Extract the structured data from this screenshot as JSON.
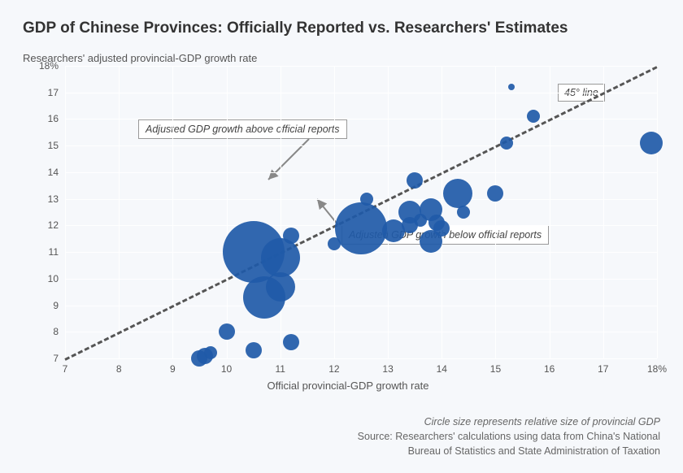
{
  "title": "GDP of Chinese Provinces: Officially Reported vs. Researchers' Estimates",
  "y_axis_title": "Researchers' adjusted provincial-GDP growth rate",
  "x_axis_title": "Official provincial-GDP growth rate",
  "chart": {
    "type": "scatter-bubble",
    "xlim": [
      7,
      18
    ],
    "ylim": [
      7,
      18
    ],
    "x_ticks": [
      7,
      8,
      9,
      10,
      11,
      12,
      13,
      14,
      15,
      16,
      17,
      18
    ],
    "y_ticks": [
      7,
      8,
      9,
      10,
      11,
      12,
      13,
      14,
      15,
      16,
      17,
      18
    ],
    "x_tick_labels": [
      "7",
      "8",
      "9",
      "10",
      "11",
      "12",
      "13",
      "14",
      "15",
      "16",
      "17",
      "18%"
    ],
    "y_tick_labels": [
      "7",
      "8",
      "9",
      "10",
      "11",
      "12",
      "13",
      "14",
      "15",
      "16",
      "17",
      "18%"
    ],
    "background_color": "#f6f8fb",
    "grid_color": "#ffffff",
    "marker_color": "#1f5aa8",
    "line_color": "#555555",
    "line_dash": "6 6",
    "line_width": 3,
    "points": [
      {
        "x": 9.5,
        "y": 7.0,
        "s": 10
      },
      {
        "x": 9.6,
        "y": 7.1,
        "s": 10
      },
      {
        "x": 9.7,
        "y": 7.2,
        "s": 8
      },
      {
        "x": 10.0,
        "y": 8.0,
        "s": 10
      },
      {
        "x": 10.5,
        "y": 7.3,
        "s": 10
      },
      {
        "x": 11.2,
        "y": 7.6,
        "s": 10
      },
      {
        "x": 10.7,
        "y": 9.3,
        "s": 26
      },
      {
        "x": 11.0,
        "y": 9.7,
        "s": 18
      },
      {
        "x": 10.5,
        "y": 11.0,
        "s": 38
      },
      {
        "x": 11.0,
        "y": 10.8,
        "s": 24
      },
      {
        "x": 11.2,
        "y": 11.6,
        "s": 10
      },
      {
        "x": 12.0,
        "y": 11.3,
        "s": 8
      },
      {
        "x": 12.5,
        "y": 11.9,
        "s": 32
      },
      {
        "x": 12.6,
        "y": 13.0,
        "s": 8
      },
      {
        "x": 13.1,
        "y": 11.8,
        "s": 14
      },
      {
        "x": 13.4,
        "y": 12.0,
        "s": 10
      },
      {
        "x": 13.4,
        "y": 12.5,
        "s": 14
      },
      {
        "x": 13.5,
        "y": 13.7,
        "s": 10
      },
      {
        "x": 13.6,
        "y": 12.2,
        "s": 8
      },
      {
        "x": 13.8,
        "y": 11.4,
        "s": 14
      },
      {
        "x": 13.8,
        "y": 12.6,
        "s": 14
      },
      {
        "x": 13.9,
        "y": 12.1,
        "s": 10
      },
      {
        "x": 14.0,
        "y": 11.9,
        "s": 10
      },
      {
        "x": 14.3,
        "y": 13.2,
        "s": 18
      },
      {
        "x": 14.4,
        "y": 12.5,
        "s": 8
      },
      {
        "x": 15.0,
        "y": 13.2,
        "s": 10
      },
      {
        "x": 15.2,
        "y": 15.1,
        "s": 8
      },
      {
        "x": 15.3,
        "y": 17.2,
        "s": 4
      },
      {
        "x": 15.7,
        "y": 16.1,
        "s": 8
      },
      {
        "x": 17.9,
        "y": 15.1,
        "s": 14
      }
    ],
    "annotations": {
      "above": "Adjusted GDP growth above official reports",
      "below": "Adjusted GDP growth below official reports",
      "line_label": "45° line"
    }
  },
  "footnote_italic": "Circle size represents relative size of provincial GDP",
  "footnote_line1": "Source: Researchers' calculations using data from China's National",
  "footnote_line2": "Bureau of Statistics and State Administration of Taxation"
}
